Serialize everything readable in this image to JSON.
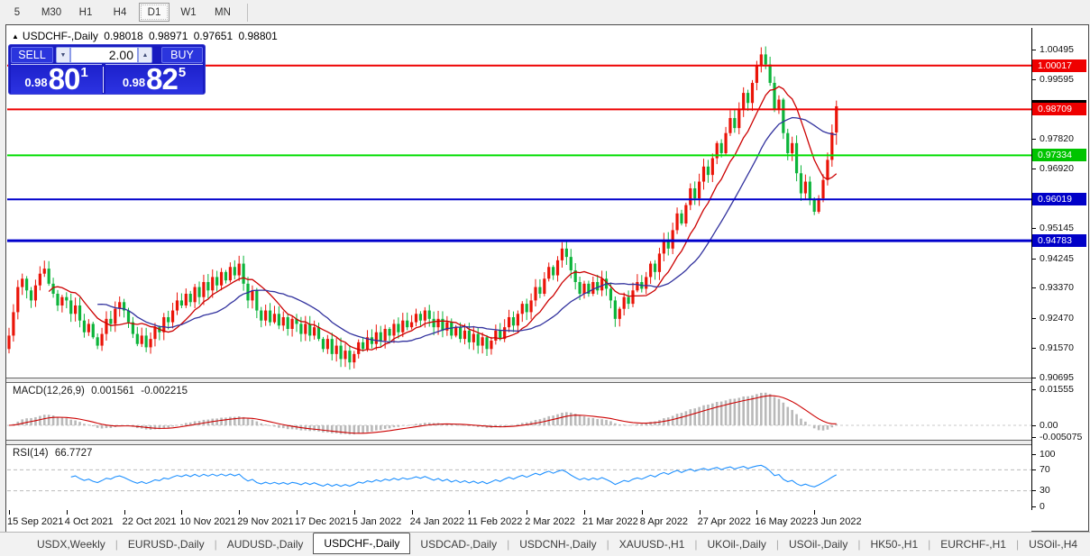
{
  "toolbar": {
    "timeframes": [
      {
        "label": "5",
        "active": false
      },
      {
        "label": "M30",
        "active": false
      },
      {
        "label": "H1",
        "active": false
      },
      {
        "label": "H4",
        "active": false
      },
      {
        "label": "D1",
        "active": true
      },
      {
        "label": "W1",
        "active": false
      },
      {
        "label": "MN",
        "active": false
      }
    ]
  },
  "chart": {
    "header": {
      "expand_arrow": "▲",
      "title": "USDCHF-,Daily",
      "open": "0.98018",
      "high": "0.98971",
      "low": "0.97651",
      "close": "0.98801"
    },
    "trade_panel": {
      "sell_label": "SELL",
      "buy_label": "BUY",
      "volume": "2.00",
      "spin_down": "▼",
      "spin_up": "▲",
      "sell_price": {
        "prefix": "0.98",
        "big": "80",
        "sup": "1"
      },
      "buy_price": {
        "prefix": "0.98",
        "big": "82",
        "sup": "5"
      }
    },
    "price_axis_ticks": [
      1.00495,
      0.99595,
      0.9782,
      0.9692,
      0.95145,
      0.94245,
      0.9337,
      0.9247,
      0.9157,
      0.90695
    ],
    "price_badges": [
      {
        "price": 1.00017,
        "label": "1.00017",
        "color": "#ef0000"
      },
      {
        "price": 0.98709,
        "label": "0.98709",
        "color": "#ef0000"
      },
      {
        "price": 0.97334,
        "label": "0.97334",
        "color": "#00c400"
      },
      {
        "price": 0.96019,
        "label": "0.96019",
        "color": "#0000c8"
      },
      {
        "price": 0.94783,
        "label": "0.94783",
        "color": "#0000c8"
      }
    ],
    "bid_marker": {
      "price": 0.98801,
      "color": "#000000"
    },
    "levels": [
      {
        "price": 1.00017,
        "color": "#ee0000",
        "width": 2
      },
      {
        "price": 0.98709,
        "color": "#ee0000",
        "width": 2
      },
      {
        "price": 0.97334,
        "color": "#00dd00",
        "width": 2
      },
      {
        "price": 0.96019,
        "color": "#0000cc",
        "width": 2
      },
      {
        "price": 0.94783,
        "color": "#0000cc",
        "width": 3
      }
    ]
  },
  "macd_panel": {
    "label": "MACD(12,26,9)",
    "main_value": "0.001561",
    "signal_value": "-0.002215",
    "axis_ticks": [
      {
        "v": 0.01555,
        "label": "0.01555"
      },
      {
        "v": 0,
        "label": "0.00"
      },
      {
        "v": -0.005075,
        "label": "-0.005075"
      }
    ],
    "histogram_color": "#b9b9b9",
    "signal_color": "#cc0000"
  },
  "rsi_panel": {
    "label": "RSI(14)",
    "value": "66.7727",
    "axis_ticks": [
      {
        "v": 100,
        "label": "100"
      },
      {
        "v": 70,
        "label": "70"
      },
      {
        "v": 30,
        "label": "30"
      },
      {
        "v": 0,
        "label": "0"
      }
    ],
    "levels": [
      70,
      30
    ],
    "line_color": "#1e90ff"
  },
  "date_axis": [
    "15 Sep 2021",
    "4 Oct 2021",
    "22 Oct 2021",
    "10 Nov 2021",
    "29 Nov 2021",
    "17 Dec 2021",
    "5 Jan 2022",
    "24 Jan 2022",
    "11 Feb 2022",
    "2 Mar 2022",
    "21 Mar 2022",
    "8 Apr 2022",
    "27 Apr 2022",
    "16 May 2022",
    "3 Jun 2022"
  ],
  "tabs": {
    "items": [
      {
        "label": "USDX,Weekly",
        "active": false
      },
      {
        "label": "EURUSD-,Daily",
        "active": false
      },
      {
        "label": "AUDUSD-,Daily",
        "active": false
      },
      {
        "label": "USDCHF-,Daily",
        "active": true
      },
      {
        "label": "USDCAD-,Daily",
        "active": false
      },
      {
        "label": "USDCNH-,Daily",
        "active": false
      },
      {
        "label": "XAUUSD-,H1",
        "active": false
      },
      {
        "label": "UKOil-,Daily",
        "active": false
      },
      {
        "label": "USOil-,Daily",
        "active": false
      },
      {
        "label": "HK50-,H1",
        "active": false
      },
      {
        "label": "EURCHF-,H1",
        "active": false
      },
      {
        "label": "USOil-,H4",
        "active": false
      }
    ],
    "scroll_left": "◄",
    "scroll_right": "►"
  },
  "chart_data": {
    "type": "candlestick",
    "symbol": "USDCHF",
    "timeframe": "Daily",
    "y_min": 0.90695,
    "y_max": 1.00495,
    "x_tick_every": 13,
    "up_color": "#ea1408",
    "down_color": "#0cb43a",
    "ma_fast": {
      "period": 10,
      "color": "#cc0000"
    },
    "ma_slow": {
      "period": 21,
      "color": "#32329e"
    },
    "last_ohlc": {
      "open": 0.98018,
      "high": 0.98971,
      "low": 0.97651,
      "close": 0.98801
    },
    "closes": [
      0.9195,
      0.9265,
      0.934,
      0.9365,
      0.933,
      0.93,
      0.9345,
      0.938,
      0.9395,
      0.935,
      0.932,
      0.9285,
      0.931,
      0.93,
      0.926,
      0.9285,
      0.924,
      0.9205,
      0.923,
      0.919,
      0.9165,
      0.92,
      0.9245,
      0.923,
      0.9275,
      0.9295,
      0.927,
      0.9235,
      0.92,
      0.917,
      0.9195,
      0.916,
      0.9185,
      0.922,
      0.9205,
      0.925,
      0.9235,
      0.927,
      0.93,
      0.9285,
      0.932,
      0.9295,
      0.934,
      0.931,
      0.9355,
      0.933,
      0.937,
      0.9345,
      0.9385,
      0.936,
      0.94,
      0.9375,
      0.941,
      0.935,
      0.93,
      0.933,
      0.927,
      0.924,
      0.927,
      0.9235,
      0.926,
      0.9225,
      0.925,
      0.9215,
      0.9245,
      0.923,
      0.92,
      0.923,
      0.9195,
      0.922,
      0.9185,
      0.9155,
      0.9185,
      0.914,
      0.9165,
      0.9125,
      0.915,
      0.9115,
      0.914,
      0.9175,
      0.9155,
      0.919,
      0.917,
      0.9205,
      0.918,
      0.9215,
      0.9195,
      0.923,
      0.9205,
      0.924,
      0.922,
      0.9235,
      0.926,
      0.924,
      0.927,
      0.9245,
      0.922,
      0.9245,
      0.921,
      0.9235,
      0.9195,
      0.922,
      0.9185,
      0.921,
      0.9175,
      0.92,
      0.9165,
      0.919,
      0.9155,
      0.918,
      0.921,
      0.9185,
      0.922,
      0.925,
      0.9225,
      0.926,
      0.929,
      0.9265,
      0.93,
      0.934,
      0.932,
      0.9365,
      0.94,
      0.9375,
      0.942,
      0.9455,
      0.943,
      0.939,
      0.9355,
      0.932,
      0.935,
      0.932,
      0.9355,
      0.933,
      0.9365,
      0.9335,
      0.93,
      0.9245,
      0.9275,
      0.931,
      0.929,
      0.933,
      0.9355,
      0.9335,
      0.937,
      0.941,
      0.9385,
      0.944,
      0.948,
      0.9455,
      0.951,
      0.956,
      0.953,
      0.9585,
      0.9635,
      0.9605,
      0.9655,
      0.97,
      0.9675,
      0.9725,
      0.977,
      0.974,
      0.98,
      0.9845,
      0.9815,
      0.987,
      0.992,
      0.989,
      0.995,
      1.0,
      1.0035,
      1.0005,
      0.995,
      0.987,
      0.99,
      0.98,
      0.974,
      0.977,
      0.968,
      0.962,
      0.9655,
      0.96,
      0.9565,
      0.9605,
      0.966,
      0.972,
      0.98018,
      0.98801
    ]
  }
}
